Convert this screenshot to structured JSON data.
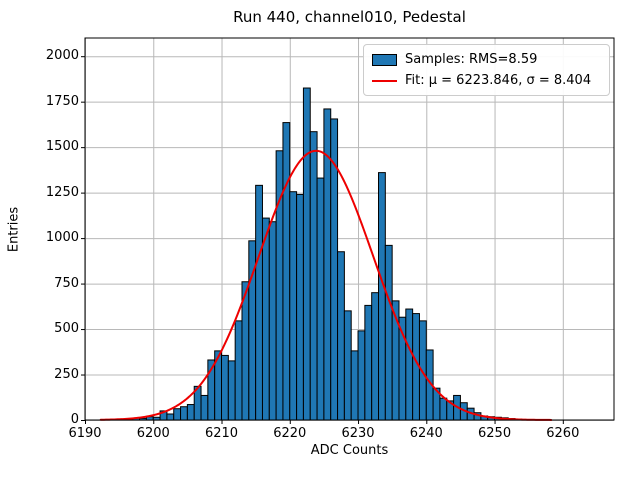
{
  "title": "Run 440, channel010, Pedestal",
  "xlabel": "ADC Counts",
  "ylabel": "Entries",
  "legend": {
    "samples_label": "Samples: RMS=8.59",
    "fit_label": "Fit: μ = 6223.846, σ = 8.404"
  },
  "chart_data": {
    "type": "bar",
    "subtype": "histogram-with-gaussian-fit",
    "title": "Run 440, channel010, Pedestal",
    "xlabel": "ADC Counts",
    "ylabel": "Entries",
    "grid": true,
    "legend_position": "upper right",
    "xlim": [
      6190,
      6267.5
    ],
    "ylim": [
      0,
      2100
    ],
    "x_ticks": [
      6190,
      6200,
      6210,
      6220,
      6230,
      6240,
      6250,
      6260
    ],
    "y_ticks": [
      0,
      250,
      500,
      750,
      1000,
      1250,
      1500,
      1750,
      2000
    ],
    "bins": {
      "start": 6194,
      "width": 1,
      "counts": [
        2,
        4,
        8,
        11,
        9,
        18,
        15,
        50,
        33,
        62,
        73,
        85,
        185,
        135,
        330,
        380,
        355,
        325,
        545,
        760,
        985,
        1290,
        1110,
        1090,
        1480,
        1635,
        1255,
        1240,
        1825,
        1585,
        1330,
        1710,
        1655,
        925,
        600,
        380,
        490,
        630,
        700,
        1360,
        960,
        655,
        565,
        610,
        585,
        545,
        385,
        175,
        120,
        105,
        135,
        95,
        65,
        40,
        22,
        18,
        15,
        12,
        8,
        5
      ]
    },
    "series": [
      {
        "name": "Samples: RMS=8.59",
        "rms": 8.59,
        "type": "histogram"
      },
      {
        "name": "Fit: μ = 6223.846, σ = 8.404",
        "type": "gaussian",
        "mu": 6223.846,
        "sigma": 8.404,
        "peak": 1480,
        "x_start": 6192.3,
        "x_end": 6258.3
      }
    ],
    "colors": {
      "bar_fill": "#1f77b4",
      "bar_edge": "#000000",
      "fit_line": "#ee0000",
      "grid": "#b8b8b8",
      "spine": "#000000",
      "background": "#ffffff"
    }
  }
}
